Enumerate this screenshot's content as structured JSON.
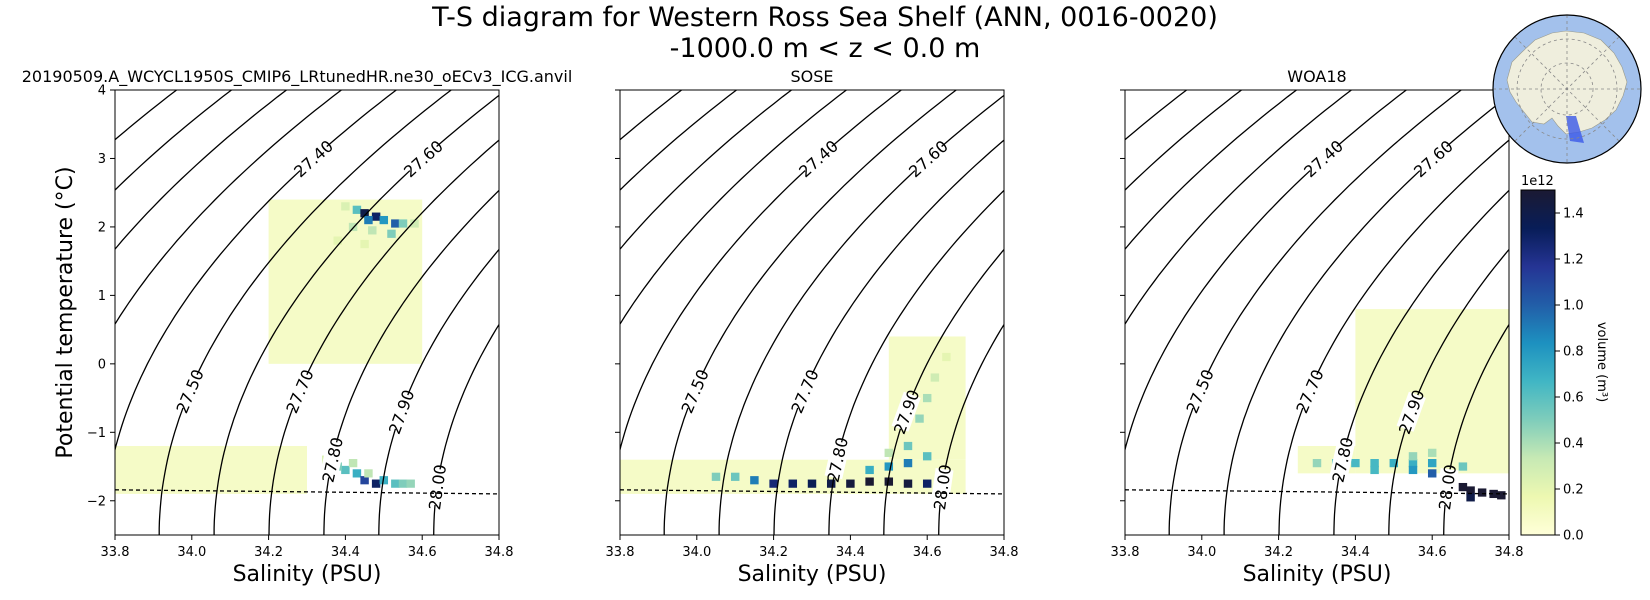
{
  "figure": {
    "title": "T-S diagram for Western Ross Sea Shelf (ANN, 0016-0020)",
    "subtitle": "-1000.0 m < z < 0.0 m"
  },
  "chart_data": [
    {
      "type": "heatmap",
      "title": "20190509.A_WCYCL1950S_CMIP6_LRtunedHR.ne30_oECv3_ICG.anvil",
      "xlabel": "Salinity (PSU)",
      "ylabel": "Potential temperature (°C)",
      "xlim": [
        33.8,
        34.8
      ],
      "ylim": [
        -2.5,
        4
      ],
      "xticks": [
        "33.8",
        "34.0",
        "34.2",
        "34.4",
        "34.6",
        "34.8"
      ],
      "yticks": [
        "−2",
        "−1",
        "0",
        "1",
        "2",
        "3",
        "4"
      ],
      "freezing_line": [
        [
          33.8,
          -1.84
        ],
        [
          34.8,
          -1.9
        ]
      ],
      "cells": [
        [
          34.43,
          2.25,
          0.6
        ],
        [
          34.45,
          2.2,
          1.4
        ],
        [
          34.48,
          2.15,
          1.3
        ],
        [
          34.5,
          2.1,
          0.8
        ],
        [
          34.53,
          2.05,
          1.0
        ],
        [
          34.55,
          2.05,
          0.5
        ],
        [
          34.58,
          2.05,
          0.3
        ],
        [
          34.46,
          2.1,
          0.9
        ],
        [
          34.42,
          2.0,
          0.35
        ],
        [
          34.47,
          1.95,
          0.35
        ],
        [
          34.52,
          1.9,
          0.5
        ],
        [
          34.4,
          2.3,
          0.25
        ],
        [
          34.38,
          1.8,
          0.2
        ],
        [
          34.45,
          1.75,
          0.2
        ],
        [
          34.4,
          -1.55,
          0.6
        ],
        [
          34.43,
          -1.6,
          0.7
        ],
        [
          34.38,
          -1.5,
          0.5
        ],
        [
          34.42,
          -1.45,
          0.35
        ],
        [
          34.45,
          -1.7,
          1.1
        ],
        [
          34.48,
          -1.75,
          1.3
        ],
        [
          34.5,
          -1.7,
          0.7
        ],
        [
          34.53,
          -1.75,
          0.6
        ],
        [
          34.55,
          -1.75,
          0.5
        ],
        [
          34.57,
          -1.75,
          0.45
        ],
        [
          34.35,
          -1.4,
          0.25
        ],
        [
          34.46,
          -1.6,
          0.35
        ]
      ],
      "haze": [
        [
          34.2,
          0.0,
          34.6,
          2.4
        ],
        [
          33.8,
          -1.9,
          34.3,
          -1.2
        ]
      ]
    },
    {
      "type": "heatmap",
      "title": "SOSE",
      "xlabel": "Salinity (PSU)",
      "ylabel": "",
      "xlim": [
        33.8,
        34.8
      ],
      "ylim": [
        -2.5,
        4
      ],
      "xticks": [
        "33.8",
        "34.0",
        "34.2",
        "34.4",
        "34.6",
        "34.8"
      ],
      "yticks": [],
      "freezing_line": [
        [
          33.8,
          -1.84
        ],
        [
          34.8,
          -1.9
        ]
      ],
      "cells": [
        [
          34.05,
          -1.65,
          0.5
        ],
        [
          34.1,
          -1.65,
          0.55
        ],
        [
          34.15,
          -1.7,
          0.9
        ],
        [
          34.2,
          -1.75,
          1.25
        ],
        [
          34.25,
          -1.75,
          1.3
        ],
        [
          34.3,
          -1.75,
          1.35
        ],
        [
          34.35,
          -1.75,
          1.4
        ],
        [
          34.4,
          -1.75,
          1.45
        ],
        [
          34.45,
          -1.72,
          1.5
        ],
        [
          34.5,
          -1.72,
          1.5
        ],
        [
          34.55,
          -1.75,
          1.45
        ],
        [
          34.6,
          -1.75,
          1.3
        ],
        [
          34.45,
          -1.55,
          0.7
        ],
        [
          34.5,
          -1.5,
          0.8
        ],
        [
          34.55,
          -1.45,
          0.9
        ],
        [
          34.55,
          -1.2,
          0.55
        ],
        [
          34.58,
          -0.8,
          0.45
        ],
        [
          34.6,
          -0.5,
          0.4
        ],
        [
          34.62,
          -0.2,
          0.3
        ],
        [
          34.65,
          0.1,
          0.2
        ],
        [
          34.6,
          -1.35,
          0.6
        ],
        [
          34.5,
          -1.3,
          0.35
        ]
      ],
      "haze": [
        [
          33.8,
          -1.9,
          34.7,
          -1.4
        ],
        [
          34.5,
          -1.4,
          34.7,
          0.4
        ]
      ]
    },
    {
      "type": "heatmap",
      "title": "WOA18",
      "xlabel": "Salinity (PSU)",
      "ylabel": "",
      "xlim": [
        33.8,
        34.8
      ],
      "ylim": [
        -2.5,
        4
      ],
      "xticks": [
        "33.8",
        "34.0",
        "34.2",
        "34.4",
        "34.6",
        "34.8"
      ],
      "yticks": [],
      "freezing_line": [
        [
          33.8,
          -1.84
        ],
        [
          34.8,
          -1.9
        ]
      ],
      "cells": [
        [
          34.3,
          -1.45,
          0.45
        ],
        [
          34.35,
          -1.45,
          0.55
        ],
        [
          34.4,
          -1.45,
          0.65
        ],
        [
          34.45,
          -1.45,
          0.65
        ],
        [
          34.5,
          -1.45,
          0.7
        ],
        [
          34.55,
          -1.45,
          0.7
        ],
        [
          34.6,
          -1.45,
          0.75
        ],
        [
          34.35,
          -1.55,
          0.55
        ],
        [
          34.45,
          -1.55,
          0.65
        ],
        [
          34.55,
          -1.55,
          0.8
        ],
        [
          34.6,
          -1.6,
          1.0
        ],
        [
          34.63,
          -1.7,
          1.3
        ],
        [
          34.65,
          -1.75,
          1.5
        ],
        [
          34.68,
          -1.8,
          1.5
        ],
        [
          34.7,
          -1.85,
          1.5
        ],
        [
          34.73,
          -1.88,
          1.5
        ],
        [
          34.76,
          -1.9,
          1.5
        ],
        [
          34.78,
          -1.92,
          1.5
        ],
        [
          34.7,
          -1.95,
          1.4
        ],
        [
          34.65,
          -1.65,
          0.9
        ],
        [
          34.55,
          -1.35,
          0.45
        ],
        [
          34.6,
          -1.3,
          0.4
        ],
        [
          34.68,
          -1.5,
          0.55
        ]
      ],
      "haze": [
        [
          34.4,
          -1.6,
          34.8,
          0.8
        ],
        [
          34.25,
          -1.6,
          34.4,
          -1.2
        ]
      ]
    }
  ],
  "contours": {
    "levels": [
      "27.00",
      "27.10",
      "27.20",
      "27.30",
      "27.40",
      "27.50",
      "27.60",
      "27.70",
      "27.80",
      "27.90",
      "28.00"
    ],
    "label_temperature": [
      2.8,
      2.3,
      0.4,
      -0.4,
      3.0,
      -0.4,
      3.0,
      -0.4,
      -1.4,
      -0.7,
      -1.8
    ]
  },
  "colorbar": {
    "label": "volume (m³)",
    "exponent": "1e12",
    "min": 0,
    "max": 1.5,
    "ticks": [
      "0.0",
      "0.2",
      "0.4",
      "0.6",
      "0.8",
      "1.0",
      "1.2",
      "1.4"
    ],
    "colors": [
      "#ffffd9",
      "#edf8b1",
      "#c7e9b4",
      "#7fcdbb",
      "#41b6c4",
      "#1d91c0",
      "#225ea8",
      "#253494",
      "#081d58",
      "#1b1a33"
    ]
  },
  "inset_map": {
    "ocean_color": "#a3c1ec",
    "land_color": "#efeedd",
    "region_color": "#3a58e8"
  }
}
